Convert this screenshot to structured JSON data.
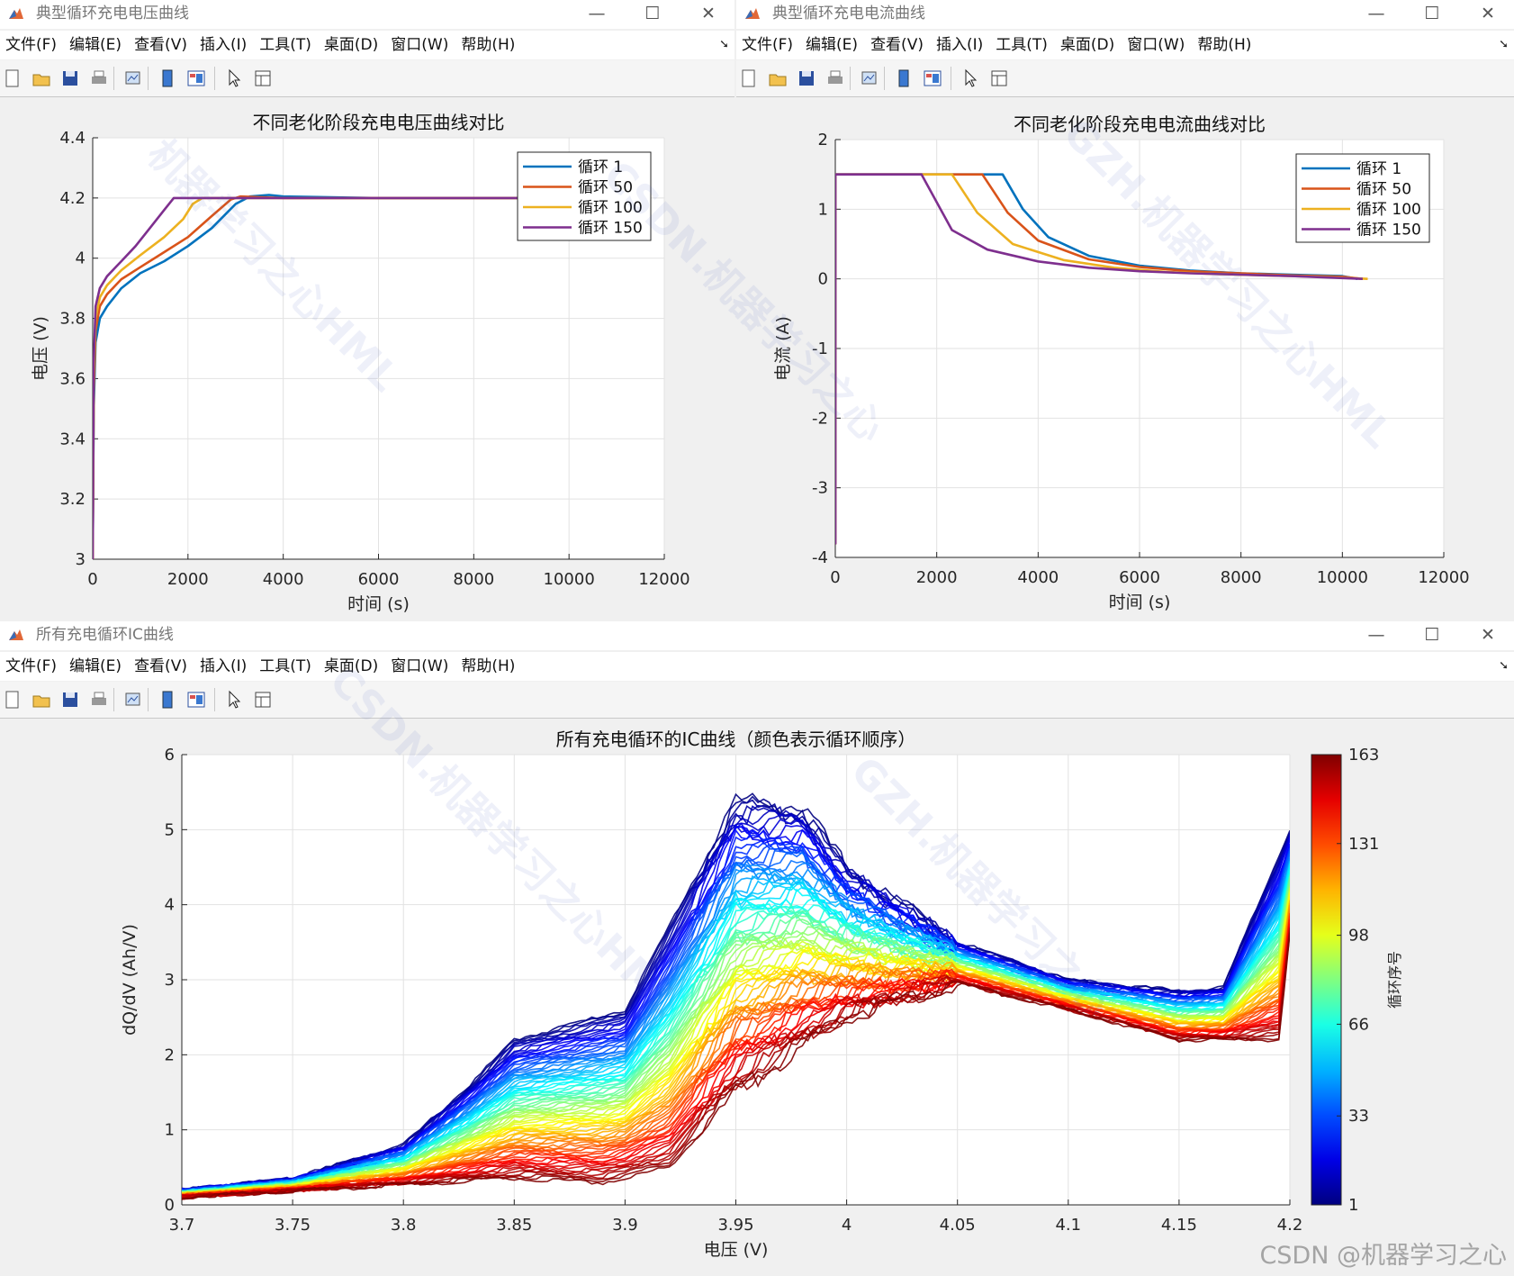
{
  "menu_items": [
    "文件(F)",
    "编辑(E)",
    "查看(V)",
    "插入(I)",
    "工具(T)",
    "桌面(D)",
    "窗口(W)",
    "帮助(H)"
  ],
  "window_controls": {
    "minimize": "—",
    "maximize": "☐",
    "close": "✕"
  },
  "toolbar_icons": [
    "new-figure-icon",
    "open-file-icon",
    "save-icon",
    "print-icon",
    "link-plot-icon",
    "hide-plot-tools-icon",
    "show-plot-tools-icon",
    "edit-plot-icon",
    "open-property-inspector-icon"
  ],
  "windows": {
    "voltage": {
      "title": "典型循环充电电压曲线"
    },
    "current": {
      "title": "典型循环充电电流曲线"
    },
    "ic": {
      "title": "所有充电循环IC曲线"
    }
  },
  "colors": {
    "cycle1": "#0072BD",
    "cycle50": "#D95319",
    "cycle100": "#EDB120",
    "cycle150": "#7E2F8E"
  },
  "chart_data": [
    {
      "type": "line",
      "title": "不同老化阶段充电电压曲线对比",
      "xlabel": "时间 (s)",
      "ylabel": "电压 (V)",
      "xlim": [
        0,
        12000
      ],
      "ylim": [
        3,
        4.4
      ],
      "xticks": [
        "0",
        "2000",
        "4000",
        "6000",
        "8000",
        "10000",
        "12000"
      ],
      "yticks": [
        "3",
        "3.2",
        "3.4",
        "3.6",
        "3.8",
        "4",
        "4.2",
        "4.4"
      ],
      "grid": true,
      "legend": "top-right",
      "series": [
        {
          "name": "循环 1",
          "x": [
            0,
            20,
            60,
            150,
            300,
            600,
            1000,
            1500,
            2000,
            2500,
            3000,
            3300,
            3700,
            4000,
            6000,
            8000,
            10000,
            11000
          ],
          "y": [
            3.0,
            3.5,
            3.72,
            3.8,
            3.84,
            3.9,
            3.95,
            3.99,
            4.04,
            4.1,
            4.18,
            4.205,
            4.21,
            4.205,
            4.2,
            4.2,
            4.2,
            4.2
          ]
        },
        {
          "name": "循环 50",
          "x": [
            0,
            20,
            60,
            150,
            300,
            600,
            1000,
            1500,
            2000,
            2500,
            2900,
            3100,
            4000,
            6000,
            8000,
            10000,
            11000
          ],
          "y": [
            3.0,
            3.55,
            3.76,
            3.84,
            3.88,
            3.93,
            3.97,
            4.02,
            4.07,
            4.14,
            4.195,
            4.205,
            4.2,
            4.2,
            4.2,
            4.2,
            4.2
          ]
        },
        {
          "name": "循环 100",
          "x": [
            0,
            20,
            60,
            150,
            300,
            600,
            1000,
            1500,
            1900,
            2100,
            2300,
            4000,
            6000,
            8000,
            10000,
            11000
          ],
          "y": [
            3.0,
            3.6,
            3.8,
            3.87,
            3.91,
            3.96,
            4.01,
            4.07,
            4.13,
            4.18,
            4.2,
            4.2,
            4.2,
            4.2,
            4.2,
            4.2
          ]
        },
        {
          "name": "循环 150",
          "x": [
            0,
            20,
            60,
            150,
            300,
            600,
            900,
            1200,
            1500,
            1700,
            2000,
            4000,
            6000,
            8000,
            10000,
            11000
          ],
          "y": [
            3.0,
            3.65,
            3.84,
            3.9,
            3.94,
            3.99,
            4.04,
            4.1,
            4.16,
            4.2,
            4.2,
            4.2,
            4.2,
            4.2,
            4.2,
            4.2
          ]
        }
      ]
    },
    {
      "type": "line",
      "title": "不同老化阶段充电电流曲线对比",
      "xlabel": "时间 (s)",
      "ylabel": "电流 (A)",
      "xlim": [
        0,
        12000
      ],
      "ylim": [
        -4,
        2
      ],
      "xticks": [
        "0",
        "2000",
        "4000",
        "6000",
        "8000",
        "10000",
        "12000"
      ],
      "yticks": [
        "-4",
        "-3",
        "-2",
        "-1",
        "0",
        "1",
        "2"
      ],
      "grid": true,
      "legend": "top-right",
      "series": [
        {
          "name": "循环 1",
          "x": [
            0,
            1,
            2,
            3300,
            3700,
            4200,
            5000,
            6000,
            7000,
            8000,
            9000,
            10000,
            10300
          ],
          "y": [
            -3.8,
            -3.8,
            1.5,
            1.5,
            1.0,
            0.6,
            0.33,
            0.19,
            0.12,
            0.08,
            0.06,
            0.04,
            0.0
          ]
        },
        {
          "name": "循环 50",
          "x": [
            0,
            1,
            2,
            2900,
            3400,
            4000,
            5000,
            6000,
            7000,
            8000,
            9000,
            10000,
            10400
          ],
          "y": [
            -3.8,
            -3.8,
            1.5,
            1.5,
            0.95,
            0.55,
            0.28,
            0.17,
            0.11,
            0.08,
            0.05,
            0.03,
            0.0
          ]
        },
        {
          "name": "循环 100",
          "x": [
            0,
            1,
            2,
            2300,
            2800,
            3500,
            4500,
            5500,
            6500,
            7500,
            8500,
            9500,
            10500
          ],
          "y": [
            -3.8,
            -3.8,
            1.5,
            1.5,
            0.95,
            0.5,
            0.27,
            0.16,
            0.1,
            0.07,
            0.05,
            0.03,
            0.0
          ]
        },
        {
          "name": "循环 150",
          "x": [
            0,
            1,
            2,
            1700,
            2300,
            3000,
            4000,
            5000,
            6000,
            7000,
            8000,
            9000,
            10400
          ],
          "y": [
            -3.8,
            -3.8,
            1.5,
            1.5,
            0.7,
            0.42,
            0.25,
            0.16,
            0.11,
            0.08,
            0.06,
            0.04,
            0.0
          ]
        }
      ]
    },
    {
      "type": "line",
      "title": "所有充电循环的IC曲线（颜色表示循环顺序）",
      "xlabel": "电压 (V)",
      "ylabel": "dQ/dV (Ah/V)",
      "xlim": [
        3.7,
        4.2
      ],
      "ylim": [
        0,
        6
      ],
      "xticks": [
        "3.7",
        "3.75",
        "3.8",
        "3.85",
        "3.9",
        "3.95",
        "4",
        "4.05",
        "4.1",
        "4.15",
        "4.2"
      ],
      "yticks": [
        "0",
        "1",
        "2",
        "3",
        "4",
        "5",
        "6"
      ],
      "grid": true,
      "colormap": "jet",
      "colorbar": {
        "label": "循环序号",
        "ticks": [
          "1",
          "33",
          "66",
          "98",
          "131",
          "163"
        ],
        "range": [
          1,
          163
        ]
      },
      "cycles": 163,
      "series_envelope": {
        "cycle_1": {
          "x": [
            3.7,
            3.75,
            3.8,
            3.83,
            3.85,
            3.9,
            3.95,
            3.98,
            4.0,
            4.05,
            4.1,
            4.15,
            4.17,
            4.2
          ],
          "y": [
            0.2,
            0.35,
            0.8,
            1.6,
            2.2,
            2.6,
            5.4,
            5.3,
            4.5,
            3.5,
            3.0,
            2.85,
            2.9,
            5.0
          ]
        },
        "cycle_163": {
          "x": [
            3.7,
            3.85,
            3.89,
            3.92,
            3.95,
            4.0,
            4.05,
            4.1,
            4.15,
            4.195,
            4.2
          ],
          "y": [
            0.1,
            0.35,
            0.3,
            0.5,
            1.5,
            2.5,
            2.95,
            2.6,
            2.2,
            2.2,
            3.6
          ]
        }
      }
    }
  ],
  "credit": "CSDN @机器学习之心"
}
